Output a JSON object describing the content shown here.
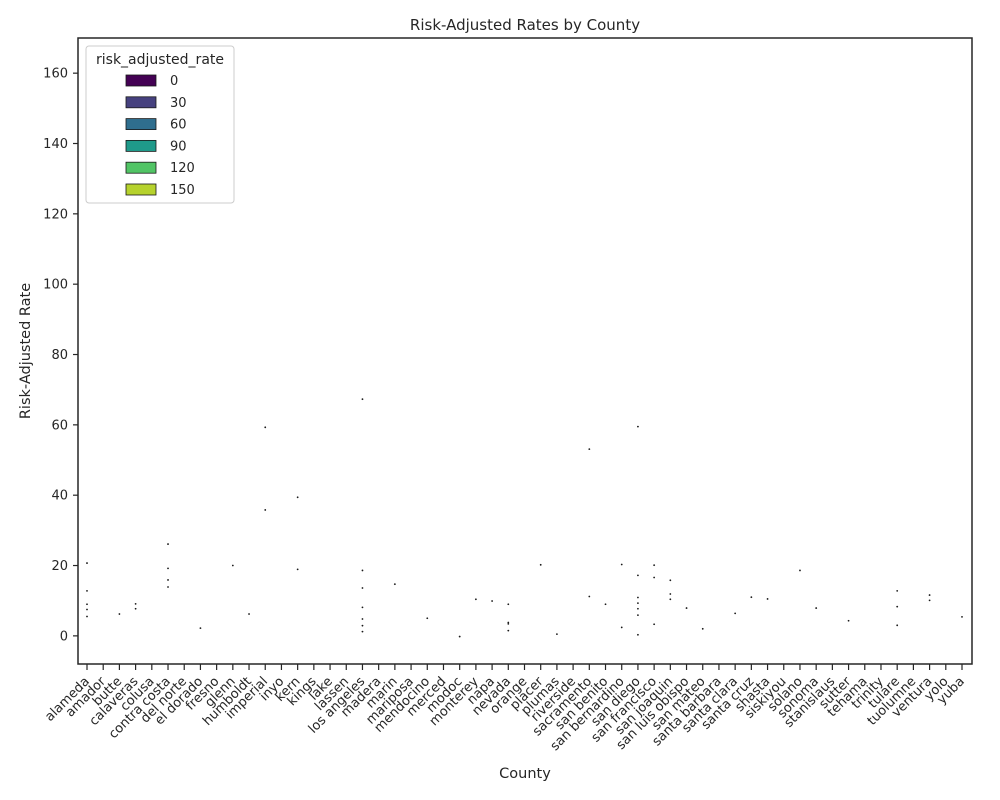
{
  "chart_data": {
    "type": "scatter",
    "title": "Risk-Adjusted Rates by County",
    "xlabel": "County",
    "ylabel": "Risk-Adjusted Rate",
    "ylim": [
      -8,
      170
    ],
    "yticks": [
      0,
      20,
      40,
      60,
      80,
      100,
      120,
      140,
      160
    ],
    "grid": false,
    "categories": [
      "alameda",
      "amador",
      "butte",
      "calaveras",
      "colusa",
      "contra costa",
      "del norte",
      "el dorado",
      "fresno",
      "glenn",
      "humboldt",
      "imperial",
      "inyo",
      "kern",
      "kings",
      "lake",
      "lassen",
      "los angeles",
      "madera",
      "marin",
      "mariposa",
      "mendocino",
      "merced",
      "modoc",
      "monterey",
      "napa",
      "nevada",
      "orange",
      "placer",
      "plumas",
      "riverside",
      "sacramento",
      "san benito",
      "san bernardino",
      "san diego",
      "san francisco",
      "san joaquin",
      "san luis obispo",
      "san mateo",
      "santa barbara",
      "santa clara",
      "santa cruz",
      "shasta",
      "siskiyou",
      "solano",
      "sonoma",
      "stanislaus",
      "sutter",
      "tehama",
      "trinity",
      "tulare",
      "tuolumne",
      "ventura",
      "yolo",
      "yuba"
    ],
    "legend": {
      "title": "risk_adjusted_rate",
      "position": "upper-left",
      "entries": [
        {
          "label": "0",
          "color": "#440154"
        },
        {
          "label": "30",
          "color": "#46417f"
        },
        {
          "label": "60",
          "color": "#2f6e8e"
        },
        {
          "label": "90",
          "color": "#1f9a8a"
        },
        {
          "label": "120",
          "color": "#51c465"
        },
        {
          "label": "150",
          "color": "#b6d22d"
        }
      ]
    },
    "points": [
      {
        "x": "alameda",
        "y": 20.7
      },
      {
        "x": "alameda",
        "y": 12.8
      },
      {
        "x": "alameda",
        "y": 9.0
      },
      {
        "x": "alameda",
        "y": 7.5
      },
      {
        "x": "alameda",
        "y": 5.5
      },
      {
        "x": "butte",
        "y": 6.2
      },
      {
        "x": "calaveras",
        "y": 9.1
      },
      {
        "x": "calaveras",
        "y": 7.7
      },
      {
        "x": "contra costa",
        "y": 26.1
      },
      {
        "x": "contra costa",
        "y": 19.2
      },
      {
        "x": "contra costa",
        "y": 15.9
      },
      {
        "x": "contra costa",
        "y": 13.9
      },
      {
        "x": "el dorado",
        "y": 2.2
      },
      {
        "x": "glenn",
        "y": 20.0
      },
      {
        "x": "humboldt",
        "y": 6.2
      },
      {
        "x": "imperial",
        "y": 59.3
      },
      {
        "x": "imperial",
        "y": 35.8
      },
      {
        "x": "kern",
        "y": 39.4
      },
      {
        "x": "kern",
        "y": 18.9
      },
      {
        "x": "los angeles",
        "y": 67.3
      },
      {
        "x": "los angeles",
        "y": 18.6
      },
      {
        "x": "los angeles",
        "y": 13.6
      },
      {
        "x": "los angeles",
        "y": 8.1
      },
      {
        "x": "los angeles",
        "y": 4.8
      },
      {
        "x": "los angeles",
        "y": 2.9
      },
      {
        "x": "los angeles",
        "y": 1.2
      },
      {
        "x": "marin",
        "y": 14.7
      },
      {
        "x": "mendocino",
        "y": 5.0
      },
      {
        "x": "modoc",
        "y": -0.2
      },
      {
        "x": "monterey",
        "y": 10.4
      },
      {
        "x": "napa",
        "y": 9.9
      },
      {
        "x": "nevada",
        "y": 3.8
      },
      {
        "x": "nevada",
        "y": 9.0
      },
      {
        "x": "nevada",
        "y": 3.4
      },
      {
        "x": "nevada",
        "y": 1.5
      },
      {
        "x": "placer",
        "y": 20.2
      },
      {
        "x": "plumas",
        "y": 0.5
      },
      {
        "x": "sacramento",
        "y": 11.2
      },
      {
        "x": "sacramento",
        "y": 53.1
      },
      {
        "x": "san benito",
        "y": 9.0
      },
      {
        "x": "san bernardino",
        "y": 20.3
      },
      {
        "x": "san bernardino",
        "y": 2.4
      },
      {
        "x": "san diego",
        "y": 59.5
      },
      {
        "x": "san diego",
        "y": 0.3
      },
      {
        "x": "san diego",
        "y": 17.2
      },
      {
        "x": "san diego",
        "y": 10.9
      },
      {
        "x": "san diego",
        "y": 9.3
      },
      {
        "x": "san diego",
        "y": 7.7
      },
      {
        "x": "san diego",
        "y": 5.9
      },
      {
        "x": "san francisco",
        "y": 3.3
      },
      {
        "x": "san francisco",
        "y": 20.1
      },
      {
        "x": "san francisco",
        "y": 16.6
      },
      {
        "x": "san joaquin",
        "y": 15.8
      },
      {
        "x": "san joaquin",
        "y": 11.9
      },
      {
        "x": "san joaquin",
        "y": 10.4
      },
      {
        "x": "san luis obispo",
        "y": 7.9
      },
      {
        "x": "san mateo",
        "y": 2.0
      },
      {
        "x": "santa clara",
        "y": 6.4
      },
      {
        "x": "santa cruz",
        "y": 11.0
      },
      {
        "x": "shasta",
        "y": 10.5
      },
      {
        "x": "solano",
        "y": 18.6
      },
      {
        "x": "sonoma",
        "y": 7.9
      },
      {
        "x": "sutter",
        "y": 4.3
      },
      {
        "x": "tulare",
        "y": 12.8
      },
      {
        "x": "tulare",
        "y": 8.3
      },
      {
        "x": "tulare",
        "y": 3.0
      },
      {
        "x": "ventura",
        "y": 11.6
      },
      {
        "x": "ventura",
        "y": 10.1
      },
      {
        "x": "yuba",
        "y": 5.4
      }
    ]
  }
}
